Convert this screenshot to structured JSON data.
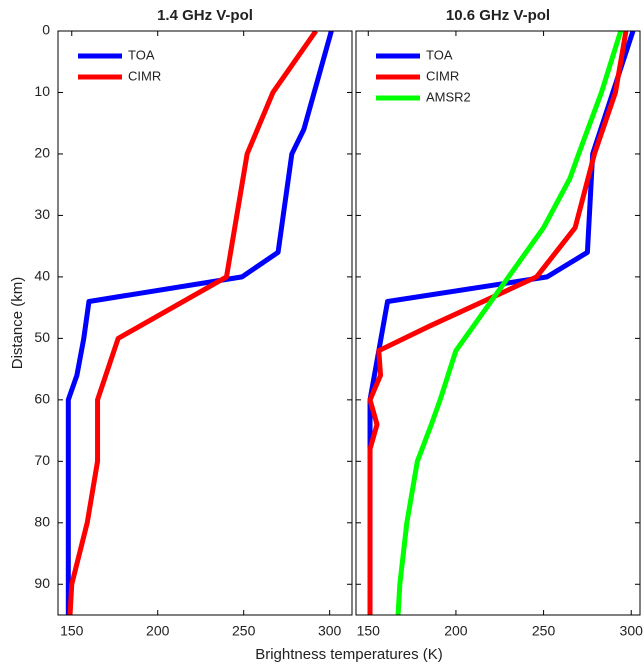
{
  "xlabel": "Brightness temperatures (K)",
  "chart_data": [
    {
      "type": "line",
      "title": "1.4 GHz V-pol",
      "ylabel": "Distance (km)",
      "xlim": [
        142,
        313
      ],
      "xticks": [
        150,
        200,
        250,
        300
      ],
      "ylim": [
        0,
        95
      ],
      "yticks": [
        0,
        10,
        20,
        30,
        40,
        50,
        60,
        70,
        80,
        90
      ],
      "y_reversed": true,
      "ytick_labels": true,
      "legend": "upper left",
      "series": [
        {
          "name": "TOA",
          "color": "#0000ff",
          "x": [
            301,
            285,
            278,
            276,
            270,
            249,
            160,
            157,
            153,
            148,
            148
          ],
          "y": [
            0,
            16,
            20,
            24,
            36,
            40,
            44,
            50,
            56,
            60,
            95
          ]
        },
        {
          "name": "CIMR",
          "color": "#ff0000",
          "x": [
            292,
            267,
            252,
            240,
            177,
            165,
            165,
            159,
            150,
            149
          ],
          "y": [
            0,
            10,
            20,
            40,
            50,
            60,
            70,
            80,
            90,
            95
          ]
        }
      ]
    },
    {
      "type": "line",
      "title": "10.6 GHz V-pol",
      "xlim": [
        143,
        305
      ],
      "xticks": [
        150,
        200,
        250,
        300
      ],
      "ylim": [
        0,
        95
      ],
      "yticks": [
        0,
        10,
        20,
        30,
        40,
        50,
        60,
        70,
        80,
        90
      ],
      "y_reversed": true,
      "ytick_labels": false,
      "legend": "upper left",
      "series": [
        {
          "name": "TOA",
          "color": "#0000ff",
          "x": [
            301,
            278,
            275,
            252,
            161,
            156,
            151,
            151
          ],
          "y": [
            0,
            20,
            36,
            40,
            44,
            52,
            60,
            95
          ]
        },
        {
          "name": "CIMR",
          "color": "#ff0000",
          "x": [
            297,
            291,
            279,
            268,
            257,
            246,
            185,
            156,
            157,
            151,
            155,
            151,
            151
          ],
          "y": [
            0,
            10,
            20,
            32,
            36,
            40,
            48,
            52,
            56,
            60,
            64,
            68,
            95
          ]
        },
        {
          "name": "AMSR2",
          "color": "#00ff00",
          "x": [
            294,
            283,
            270,
            265,
            250,
            230,
            200,
            191,
            186,
            178,
            172,
            168,
            167
          ],
          "y": [
            0,
            10,
            20,
            24,
            32,
            40,
            52,
            60,
            64,
            70,
            80,
            90,
            95
          ]
        }
      ]
    }
  ]
}
